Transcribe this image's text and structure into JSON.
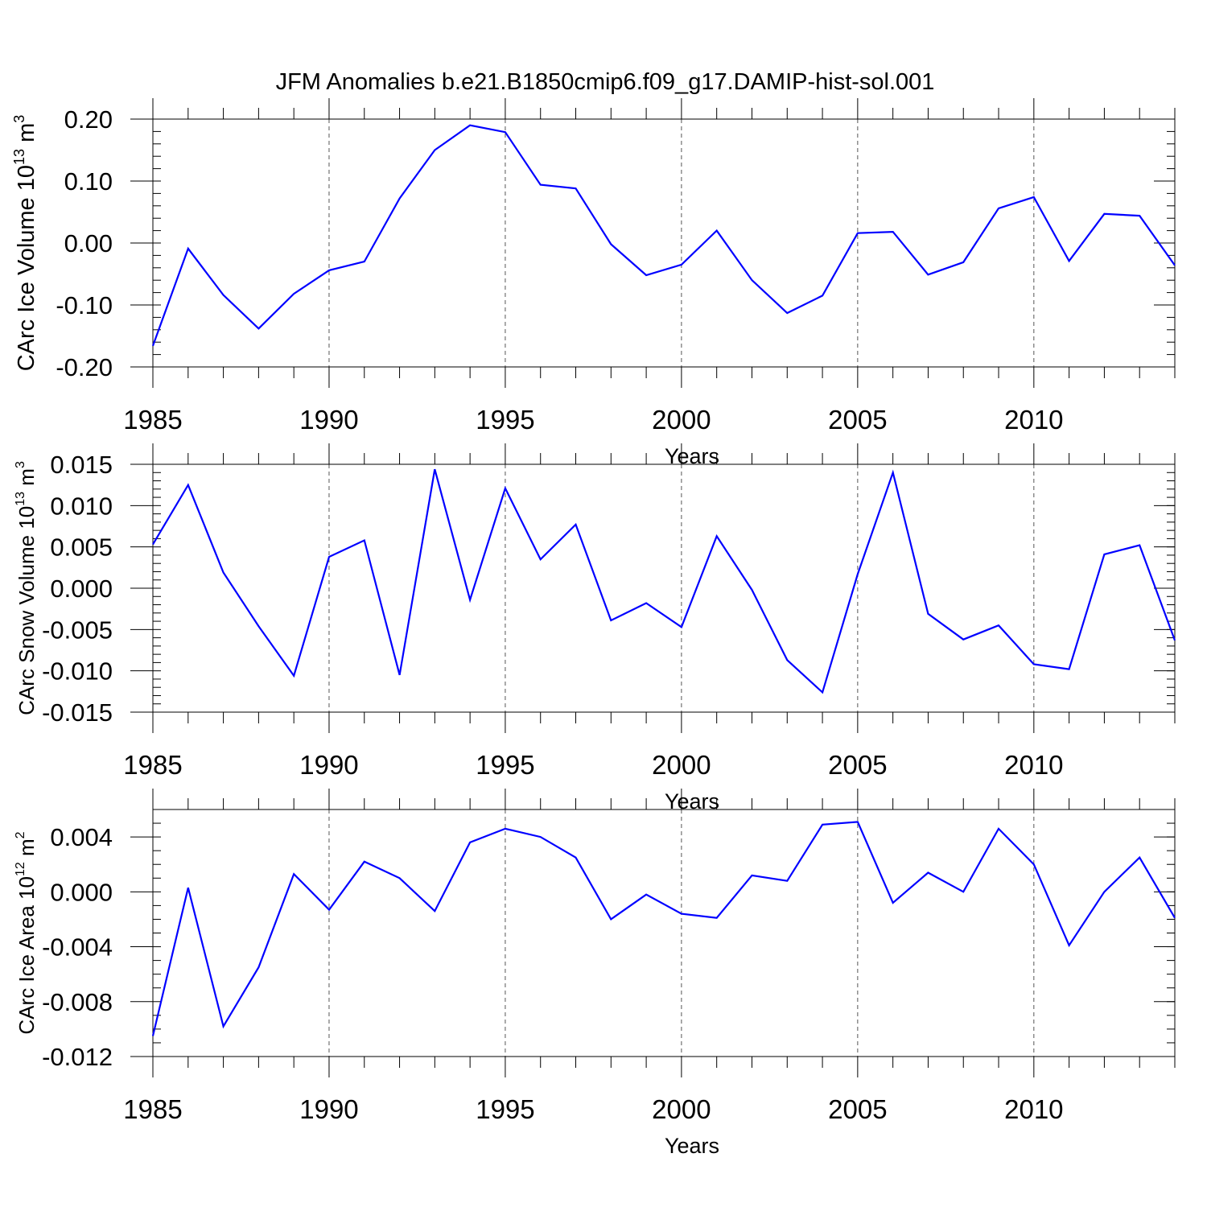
{
  "title": "JFM Anomalies b.e21.B1850cmip6.f09_g17.DAMIP-hist-sol.001",
  "colors": {
    "series": "#0000ff",
    "axis": "#000000",
    "grid": "#555555"
  },
  "chart_data": [
    {
      "type": "line",
      "xlabel": "Years",
      "ylabel": "CArc Ice Volume 10",
      "ylabel_exp": "13",
      "ylabel_unit": " m",
      "ylabel_unit_exp": "3",
      "x": [
        1985,
        1986,
        1987,
        1988,
        1989,
        1990,
        1991,
        1992,
        1993,
        1994,
        1995,
        1996,
        1997,
        1998,
        1999,
        2000,
        2001,
        2002,
        2003,
        2004,
        2005,
        2006,
        2007,
        2008,
        2009,
        2010,
        2011,
        2012,
        2013,
        2014
      ],
      "values": [
        -0.166,
        -0.009,
        -0.084,
        -0.138,
        -0.082,
        -0.044,
        -0.03,
        0.072,
        0.15,
        0.19,
        0.179,
        0.094,
        0.088,
        -0.002,
        -0.052,
        -0.035,
        0.02,
        -0.06,
        -0.113,
        -0.085,
        0.016,
        0.018,
        -0.051,
        -0.031,
        0.056,
        0.074,
        -0.029,
        0.047,
        0.044,
        -0.036
      ],
      "xlim": [
        1985,
        2014
      ],
      "ylim": [
        -0.2,
        0.2
      ],
      "xticks": [
        1985,
        1990,
        1995,
        2000,
        2005,
        2010
      ],
      "xtick_labels": [
        "1985",
        "1990",
        "1995",
        "2000",
        "2005",
        "2010"
      ],
      "yticks": [
        -0.2,
        -0.1,
        0.0,
        0.1,
        0.2
      ],
      "ytick_labels": [
        "-0.20",
        "-0.10",
        "0.00",
        "0.10",
        "0.20"
      ],
      "yminor_step": 0.02,
      "ylabel_font": 29
    },
    {
      "type": "line",
      "xlabel": "Years",
      "ylabel": "CArc Snow Volume 10",
      "ylabel_exp": "13",
      "ylabel_unit": " m",
      "ylabel_unit_exp": "3",
      "x": [
        1985,
        1986,
        1987,
        1988,
        1989,
        1990,
        1991,
        1992,
        1993,
        1994,
        1995,
        1996,
        1997,
        1998,
        1999,
        2000,
        2001,
        2002,
        2003,
        2004,
        2005,
        2006,
        2007,
        2008,
        2009,
        2010,
        2011,
        2012,
        2013,
        2014
      ],
      "values": [
        0.0053,
        0.0125,
        0.0019,
        -0.0046,
        -0.0106,
        0.0038,
        0.0058,
        -0.0105,
        0.0144,
        -0.0014,
        0.0121,
        0.0035,
        0.0077,
        -0.0039,
        -0.0018,
        -0.0047,
        0.0063,
        -0.0002,
        -0.0087,
        -0.0126,
        0.0017,
        0.014,
        -0.0031,
        -0.0062,
        -0.0045,
        -0.0092,
        -0.0098,
        0.0041,
        0.0052,
        -0.0063
      ],
      "xlim": [
        1985,
        2014
      ],
      "ylim": [
        -0.015,
        0.015
      ],
      "xticks": [
        1985,
        1990,
        1995,
        2000,
        2005,
        2010
      ],
      "xtick_labels": [
        "1985",
        "1990",
        "1995",
        "2000",
        "2005",
        "2010"
      ],
      "yticks": [
        -0.015,
        -0.01,
        -0.005,
        0.0,
        0.005,
        0.01,
        0.015
      ],
      "ytick_labels": [
        "-0.015",
        "-0.010",
        "-0.005",
        "0.000",
        "0.005",
        "0.010",
        "0.015"
      ],
      "yminor_step": 0.001,
      "ylabel_font": 26
    },
    {
      "type": "line",
      "xlabel": "Years",
      "ylabel": "CArc Ice Area 10",
      "ylabel_exp": "12",
      "ylabel_unit": " m",
      "ylabel_unit_exp": "2",
      "x": [
        1985,
        1986,
        1987,
        1988,
        1989,
        1990,
        1991,
        1992,
        1993,
        1994,
        1995,
        1996,
        1997,
        1998,
        1999,
        2000,
        2001,
        2002,
        2003,
        2004,
        2005,
        2006,
        2007,
        2008,
        2009,
        2010,
        2011,
        2012,
        2013,
        2014
      ],
      "values": [
        -0.0105,
        0.0003,
        -0.0098,
        -0.0055,
        0.0013,
        -0.0013,
        0.0022,
        0.001,
        -0.0014,
        0.0036,
        0.0046,
        0.004,
        0.0025,
        -0.002,
        -0.0002,
        -0.0016,
        -0.0019,
        0.0012,
        0.0008,
        0.0049,
        0.0051,
        -0.0008,
        0.0014,
        0.0,
        0.0046,
        0.002,
        -0.0039,
        0.0,
        0.0025,
        -0.0019
      ],
      "xlim": [
        1985,
        2014
      ],
      "ylim": [
        -0.012,
        0.006
      ],
      "xticks": [
        1985,
        1990,
        1995,
        2000,
        2005,
        2010
      ],
      "xtick_labels": [
        "1985",
        "1990",
        "1995",
        "2000",
        "2005",
        "2010"
      ],
      "yticks": [
        -0.012,
        -0.008,
        -0.004,
        0.0,
        0.004
      ],
      "ytick_labels": [
        "-0.012",
        "-0.008",
        "-0.004",
        "0.000",
        "0.004"
      ],
      "yminor_step": 0.001,
      "ylabel_font": 26
    }
  ]
}
